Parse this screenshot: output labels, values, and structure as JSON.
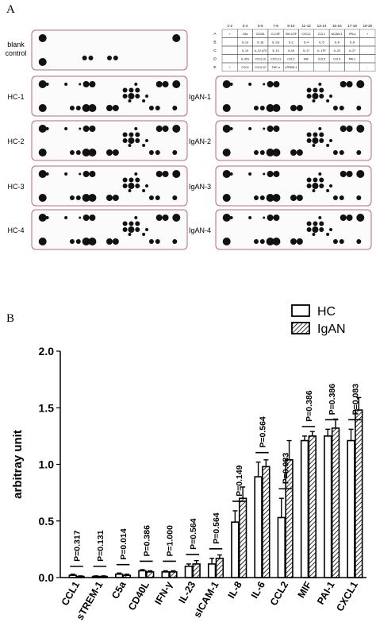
{
  "panelA": {
    "letter": "A",
    "membrane_labels_left": [
      "blank\ncontrol",
      "HC-1",
      "HC-2",
      "HC-3",
      "HC-4"
    ],
    "membrane_labels_right": [
      "IgAN-1",
      "IgAN-2",
      "IgAN-3",
      "IgAN-4"
    ],
    "grid": {
      "col_headers": [
        "1-2",
        "3-4",
        "5-6",
        "7-8",
        "9-10",
        "11-12",
        "13-14",
        "15-16",
        "17-18",
        "19-20"
      ],
      "row_headers": [
        "A",
        "B",
        "C",
        "D",
        "E"
      ],
      "cells": [
        [
          "+",
          "C5a",
          "CD40L",
          "G-CSF",
          "GM-CSF",
          "CXCL1",
          "CCL1",
          "sICAM-1",
          "IFN-γ",
          "+"
        ],
        [
          "",
          "IL-1α",
          "IL-1β",
          "IL-1ra",
          "IL-2",
          "IL-4",
          "IL-5",
          "IL-6",
          "IL-8",
          ""
        ],
        [
          "",
          "IL-10",
          "IL-12 p70",
          "IL-13",
          "IL-16",
          "IL-17",
          "IL-17E",
          "IL-23",
          "IL-27",
          ""
        ],
        [
          "",
          "IL-32α",
          "CXCL10",
          "CXCL11",
          "CCL2",
          "MIF",
          "CCL5",
          "CCL4",
          "PAI-1",
          ""
        ],
        [
          "+",
          "CCL5",
          "CXCL12",
          "TNF-α",
          "sTREM-1",
          "",
          "",
          "",
          "",
          "-"
        ]
      ]
    }
  },
  "panelB": {
    "letter": "B",
    "legend": [
      {
        "label": "HC",
        "pattern": "open"
      },
      {
        "label": "IgAN",
        "pattern": "hatched"
      }
    ]
  },
  "chart_data": {
    "type": "bar",
    "title": "",
    "xlabel": "",
    "ylabel": "arbitray unit",
    "ylim": [
      0,
      2.0
    ],
    "yticks": [
      "0.0",
      "0.5",
      "1.0",
      "1.5",
      "2.0"
    ],
    "categories": [
      "CCL1",
      "sTREM-1",
      "C5a",
      "CD40L",
      "IFN-γ",
      "IL-23",
      "sICAM-1",
      "IL-8",
      "IL-6",
      "CCL2",
      "MIF",
      "PAI-1",
      "CXCL1"
    ],
    "series": [
      {
        "name": "HC",
        "values": [
          0.02,
          0.01,
          0.03,
          0.06,
          0.05,
          0.1,
          0.12,
          0.49,
          0.89,
          0.53,
          1.21,
          1.25,
          1.21
        ],
        "errors": [
          0.01,
          0.005,
          0.01,
          0.01,
          0.01,
          0.02,
          0.05,
          0.1,
          0.13,
          0.17,
          0.04,
          0.06,
          0.1
        ]
      },
      {
        "name": "IgAN",
        "values": [
          0.01,
          0.01,
          0.02,
          0.05,
          0.05,
          0.12,
          0.17,
          0.7,
          0.98,
          1.04,
          1.25,
          1.32,
          1.48
        ],
        "errors": [
          0.005,
          0.005,
          0.01,
          0.01,
          0.01,
          0.03,
          0.03,
          0.1,
          0.06,
          0.17,
          0.04,
          0.08,
          0.11
        ]
      }
    ],
    "p_values": [
      "P=0.317",
      "P=0.131",
      "P=0.014",
      "P=0.386",
      "P=1.000",
      "P=0.564",
      "P=0.564",
      "P=0.149",
      "P=0.564",
      "P=0.083",
      "P=0.386",
      "P=0.386",
      "P=0.083"
    ],
    "legend_position": "top-right",
    "grid": false
  }
}
